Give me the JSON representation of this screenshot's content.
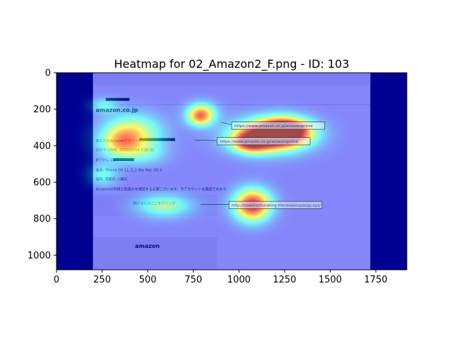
{
  "chart_data": {
    "type": "heatmap",
    "title": "Heatmap for 02_Amazon2_F.png - ID: 103",
    "xlim": [
      0,
      1920
    ],
    "ylim": [
      1080,
      0
    ],
    "xticks": [
      0,
      250,
      500,
      750,
      1000,
      1250,
      1500,
      1750
    ],
    "yticks": [
      0,
      200,
      400,
      600,
      800,
      1000
    ],
    "colormap": "jet",
    "background_image": {
      "content_x_range": [
        200,
        1720
      ],
      "sidebar_color": "#00003a",
      "email": {
        "logo": "amazon.co.jp",
        "footer_logo": "amazon",
        "body_lines": [
          "あなたのAmazonアカウント",
          "ログイン日時: 2020/10/14 7:00:31",
          "IPアドレス:",
          "端末: iPhone OS 11_5_1 like Mac OS X",
          "場所: 京都府 八幡市",
          "Amazonの利用と取組みを確認する必要ございます。今アカウントを確認できます。"
        ],
        "button_text": "続けるにはここをクリック"
      },
      "callouts": [
        {
          "text": "https://www.amazon.co.jp/amazonprime"
        },
        {
          "text": "https://www.amazon.co.jp/amazonprime"
        },
        {
          "text": "http://beweresfveaking.thenewamazonjp.xyz/"
        }
      ]
    },
    "hotspots": [
      {
        "x": 1170,
        "y": 345,
        "sx": 150,
        "sy": 65,
        "w": 1.0
      },
      {
        "x": 1260,
        "y": 315,
        "sx": 95,
        "sy": 50,
        "w": 0.8
      },
      {
        "x": 1060,
        "y": 385,
        "sx": 70,
        "sy": 40,
        "w": 0.55
      },
      {
        "x": 1075,
        "y": 725,
        "sx": 75,
        "sy": 65,
        "w": 0.95
      },
      {
        "x": 795,
        "y": 215,
        "sx": 60,
        "sy": 40,
        "w": 0.55
      },
      {
        "x": 785,
        "y": 255,
        "sx": 50,
        "sy": 35,
        "w": 0.4
      },
      {
        "x": 420,
        "y": 330,
        "sx": 115,
        "sy": 75,
        "w": 0.55
      },
      {
        "x": 345,
        "y": 395,
        "sx": 80,
        "sy": 60,
        "w": 0.42
      },
      {
        "x": 590,
        "y": 730,
        "sx": 110,
        "sy": 45,
        "w": 0.45
      },
      {
        "x": 255,
        "y": 560,
        "sx": 60,
        "sy": 45,
        "w": 0.3
      },
      {
        "x": 260,
        "y": 180,
        "sx": 55,
        "sy": 30,
        "w": 0.28
      },
      {
        "x": 500,
        "y": 445,
        "sx": 80,
        "sy": 45,
        "w": 0.22
      }
    ]
  }
}
